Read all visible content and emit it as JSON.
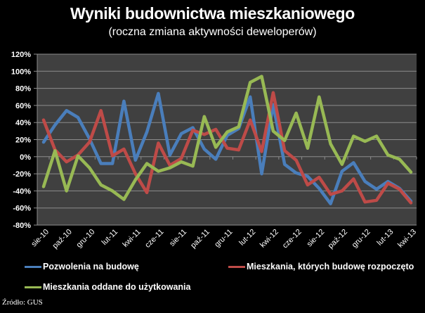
{
  "header": {
    "title": "Wyniki budownictwa mieszkaniowego",
    "subtitle": "(roczna zmiana aktywności deweloperów)"
  },
  "legend": {
    "items": [
      {
        "label": "Pozwolenia na budowę",
        "color": "#4a7ebb"
      },
      {
        "label": "Mieszkania, których budowę rozpoczęto",
        "color": "#be4b48"
      },
      {
        "label": "Mieszkania oddane  do użytkowania",
        "color": "#98b954"
      }
    ]
  },
  "source": "Źródło: GUS",
  "chart_data": {
    "type": "line",
    "title": "Wyniki budownictwa mieszkaniowego",
    "subtitle": "(roczna zmiana aktywności deweloperów)",
    "xlabel": "",
    "ylabel": "",
    "ylim": [
      -80,
      120
    ],
    "y_ticks": [
      "120%",
      "100%",
      "80%",
      "60%",
      "40%",
      "20%",
      "0%",
      "-20%",
      "-40%",
      "-60%",
      "-80%"
    ],
    "y_tick_values": [
      120,
      100,
      80,
      60,
      40,
      20,
      0,
      -20,
      -40,
      -60,
      -80
    ],
    "grid": true,
    "legend_position": "bottom",
    "x": [
      "sie-10",
      "wrz-10",
      "paź-10",
      "lis-10",
      "gru-10",
      "sty-11",
      "lut-11",
      "mar-11",
      "kwi-11",
      "maj-11",
      "cze-11",
      "lip-11",
      "sie-11",
      "wrz-11",
      "paź-11",
      "lis-11",
      "gru-11",
      "sty-12",
      "lut-12",
      "mar-12",
      "kwi-12",
      "maj-12",
      "cze-12",
      "lip-12",
      "sie-12",
      "wrz-12",
      "paź-12",
      "lis-12",
      "gru-12",
      "sty-13",
      "lut-13",
      "mar-13",
      "kwi-13"
    ],
    "x_tick_labels": [
      "sie-10",
      "paź-10",
      "gru-10",
      "lut-11",
      "kwi-11",
      "cze-11",
      "sie-11",
      "paź-11",
      "gru-11",
      "lut-12",
      "kwi-12",
      "cze-12",
      "sie-12",
      "paź-12",
      "gru-12",
      "lut-13",
      "kwi-13"
    ],
    "series": [
      {
        "name": "Pozwolenia na budowę",
        "color": "#4a7ebb",
        "values": [
          17,
          37,
          54,
          46,
          21,
          -8,
          -8,
          65,
          -4,
          29,
          74,
          2,
          27,
          34,
          9,
          -3,
          25,
          33,
          70,
          -20,
          61,
          -9,
          -19,
          -23,
          -37,
          -55,
          -17,
          -7,
          -29,
          -38,
          -29,
          -37,
          -52
        ]
      },
      {
        "name": "Mieszkania, których budowę rozpoczęto",
        "color": "#be4b48",
        "values": [
          43,
          8,
          -6,
          2,
          17,
          54,
          1,
          9,
          -20,
          -42,
          16,
          -10,
          -2,
          31,
          26,
          32,
          10,
          8,
          43,
          6,
          75,
          7,
          -4,
          -33,
          -24,
          -44,
          -40,
          -26,
          -53,
          -51,
          -31,
          -38,
          -54
        ]
      },
      {
        "name": "Mieszkania oddane  do użytkowania",
        "color": "#98b954",
        "values": [
          -35,
          7,
          -40,
          1,
          -13,
          -33,
          -40,
          -50,
          -27,
          -8,
          -17,
          -13,
          -6,
          -11,
          47,
          11,
          29,
          35,
          87,
          94,
          30,
          19,
          51,
          10,
          70,
          15,
          -9,
          24,
          18,
          24,
          2,
          -3,
          -18
        ]
      }
    ]
  }
}
